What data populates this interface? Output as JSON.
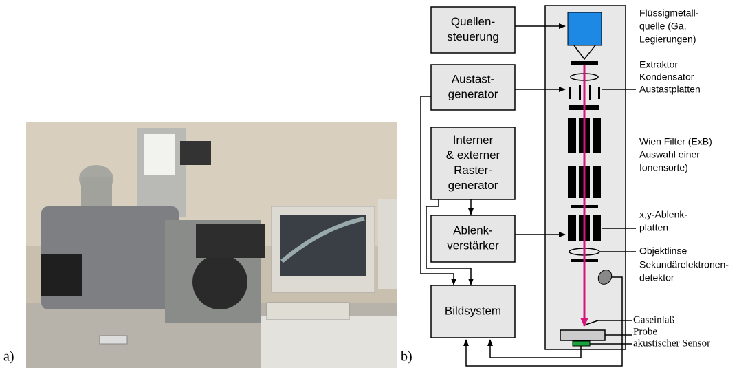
{
  "captions": {
    "a": "a)",
    "b": "b)"
  },
  "boxes": [
    {
      "lines": [
        "Quellen-",
        "steuerung"
      ]
    },
    {
      "lines": [
        "Austast-",
        "generator"
      ]
    },
    {
      "lines": [
        "Interner",
        "& externer",
        "Raster-",
        "generator"
      ]
    },
    {
      "lines": [
        "Ablenk-",
        "verstärker"
      ]
    },
    {
      "lines": [
        "Bildsystem"
      ]
    }
  ],
  "labels": [
    {
      "lines": [
        "Flüssigmetall-",
        "quelle (Ga,",
        "Legierungen)"
      ]
    },
    {
      "lines": [
        "Extraktor"
      ]
    },
    {
      "lines": [
        "Kondensator"
      ]
    },
    {
      "lines": [
        "Austastplatten"
      ]
    },
    {
      "lines": [
        "Wien Filter (ExB)",
        "Auswahl einer",
        "Ionensorte)"
      ]
    },
    {
      "lines": [
        "x,y-Ablenk-",
        "platten"
      ]
    },
    {
      "lines": [
        "Objektlinse"
      ]
    },
    {
      "lines": [
        "Sekundärelektronen-",
        "detektor"
      ]
    },
    {
      "lines": [
        "Gaseinlaß"
      ]
    },
    {
      "lines": [
        "Probe"
      ]
    },
    {
      "lines": [
        "akustischer Sensor"
      ]
    }
  ]
}
